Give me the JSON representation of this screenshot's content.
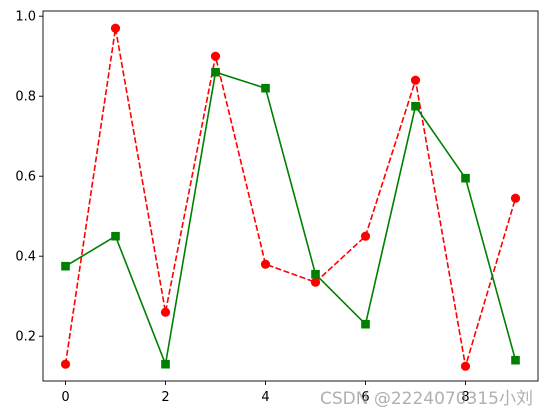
{
  "chart_data": {
    "type": "line",
    "x": [
      0,
      1,
      2,
      3,
      4,
      5,
      6,
      7,
      8,
      9
    ],
    "series": [
      {
        "values": [
          0.13,
          0.97,
          0.26,
          0.9,
          0.38,
          0.335,
          0.45,
          0.84,
          0.125,
          0.545
        ],
        "color": "#ff0000",
        "line_style": "dashed",
        "marker": "circle"
      },
      {
        "values": [
          0.375,
          0.45,
          0.13,
          0.86,
          0.82,
          0.355,
          0.23,
          0.775,
          0.595,
          0.14
        ],
        "color": "#008000",
        "line_style": "solid",
        "marker": "square"
      }
    ],
    "xlim": [
      -0.45,
      9.45
    ],
    "ylim": [
      0.088,
      1.013
    ],
    "xticks": [
      0,
      2,
      4,
      6,
      8
    ],
    "yticks": [
      0.2,
      0.4,
      0.6,
      0.8,
      1.0
    ],
    "xtick_labels": [
      "0",
      "2",
      "4",
      "6",
      "8"
    ],
    "ytick_labels": [
      "0.2",
      "0.4",
      "0.6",
      "0.8",
      "1.0"
    ],
    "grid": false,
    "title": "",
    "xlabel": "",
    "ylabel": ""
  },
  "watermark": "CSDN @2224070315小刘"
}
